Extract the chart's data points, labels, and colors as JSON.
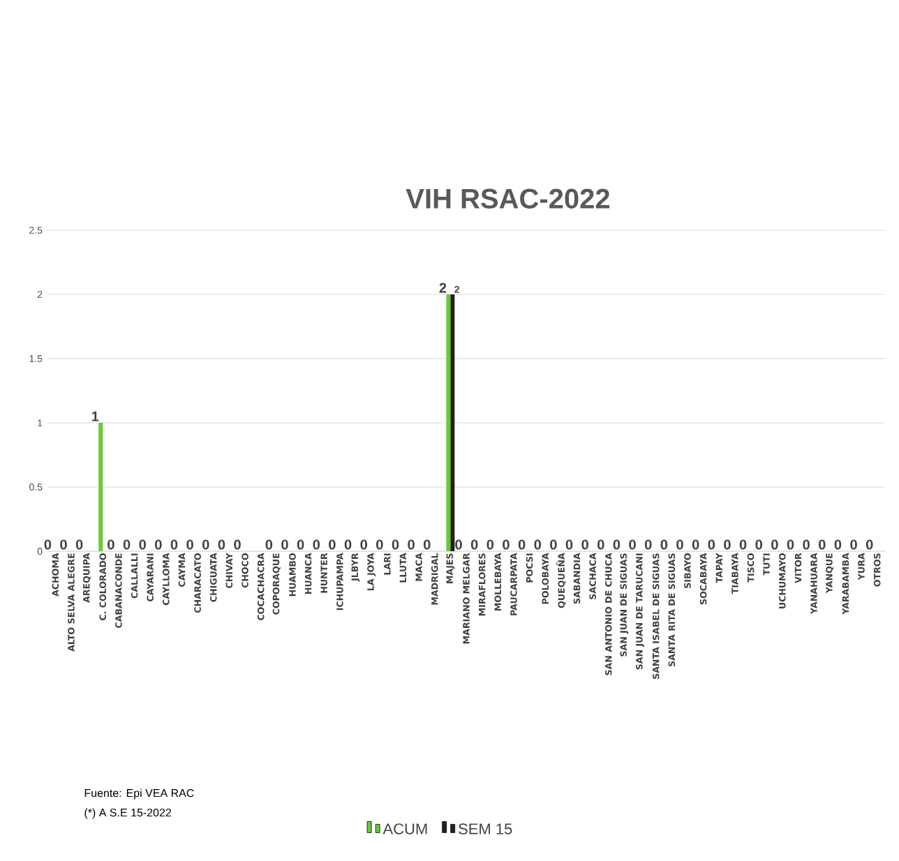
{
  "chart_data": {
    "type": "bar",
    "title": "VIH RSAC-2022",
    "categories": [
      "ACHOMA",
      "ALTO SELVA ALEGRE",
      "AREQUIPA",
      "C. COLORADO",
      "CABANACONDE",
      "CALLALLI",
      "CAYARANI",
      "CAYLLOMA",
      "CAYMA",
      "CHARACATO",
      "CHIGUATA",
      "CHIVAY",
      "CHOCO",
      "COCACHACRA",
      "COPORAQUE",
      "HUAMBO",
      "HUANCA",
      "HUNTER",
      "ICHUPAMPA",
      "JLBYR",
      "LA JOYA",
      "LARI",
      "LLUTA",
      "MACA",
      "MADRIGAL",
      "MAJES",
      "MARIANO MELGAR",
      "MIRAFLORES",
      "MOLLEBAYA",
      "PAUCARPATA",
      "POCSI",
      "POLOBAYA",
      "QUEQUEÑA",
      "SABANDIA",
      "SACHACA",
      "SAN ANTONIO DE CHUCA",
      "SAN JUAN DE SIGUAS",
      "SAN JUAN DE TARUCANI",
      "SANTA ISABEL DE SIGUAS",
      "SANTA RITA DE SIGUAS",
      "SIBAYO",
      "SOCABAYA",
      "TAPAY",
      "TIABAYA",
      "TISCO",
      "TUTI",
      "UCHUMAYO",
      "VITOR",
      "YANAHUARA",
      "YANQUE",
      "YARABAMBA",
      "YURA",
      "OTROS"
    ],
    "series": [
      {
        "name": "ACUM",
        "color": "#66cc33",
        "values": [
          0,
          0,
          0,
          1,
          0,
          0,
          0,
          0,
          0,
          0,
          0,
          0,
          0,
          null,
          0,
          0,
          0,
          0,
          0,
          0,
          0,
          0,
          0,
          0,
          0,
          2,
          0,
          0,
          0,
          0,
          0,
          0,
          0,
          0,
          0,
          0,
          0,
          0,
          0,
          0,
          0,
          0,
          0,
          0,
          0,
          0,
          0,
          0,
          0,
          0,
          0,
          0,
          0
        ],
        "value_labels": [
          "0",
          "0",
          "0",
          "1",
          "0",
          "0",
          "0",
          "0",
          "0",
          "0",
          "0",
          "0",
          "0",
          null,
          "0",
          "0",
          "0",
          "0",
          "0",
          "0",
          "0",
          "0",
          "0",
          "0",
          "0",
          "2",
          "0",
          "0",
          "0",
          "0",
          "0",
          "0",
          "0",
          "0",
          "0",
          "0",
          "0",
          "0",
          "0",
          "0",
          "0",
          "0",
          "0",
          "0",
          "0",
          "0",
          "0",
          "0",
          "0",
          "0",
          "0",
          "0",
          "0"
        ]
      },
      {
        "name": "SEM 15",
        "color": "#222222",
        "values": [
          null,
          null,
          null,
          null,
          null,
          null,
          null,
          null,
          null,
          null,
          null,
          null,
          null,
          null,
          null,
          null,
          null,
          null,
          null,
          null,
          null,
          null,
          null,
          null,
          null,
          2,
          null,
          null,
          null,
          null,
          null,
          null,
          null,
          null,
          null,
          null,
          null,
          null,
          null,
          null,
          null,
          null,
          null,
          null,
          null,
          null,
          null,
          null,
          null,
          null,
          null,
          null,
          null
        ],
        "value_labels": [
          null,
          null,
          null,
          null,
          null,
          null,
          null,
          null,
          null,
          null,
          null,
          null,
          null,
          null,
          null,
          null,
          null,
          null,
          null,
          null,
          null,
          null,
          null,
          null,
          null,
          "2",
          null,
          null,
          null,
          null,
          null,
          null,
          null,
          null,
          null,
          null,
          null,
          null,
          null,
          null,
          null,
          null,
          null,
          null,
          null,
          null,
          null,
          null,
          null,
          null,
          null,
          null,
          null
        ]
      }
    ],
    "ylim": [
      0,
      2.5
    ],
    "yticks": [
      0,
      0.5,
      1,
      1.5,
      2,
      2.5
    ],
    "grid": "y",
    "legend": "bottom",
    "annotations": [
      "Fuente:  Epi VEA RAC",
      "(*) A S.E 15-2022"
    ]
  }
}
